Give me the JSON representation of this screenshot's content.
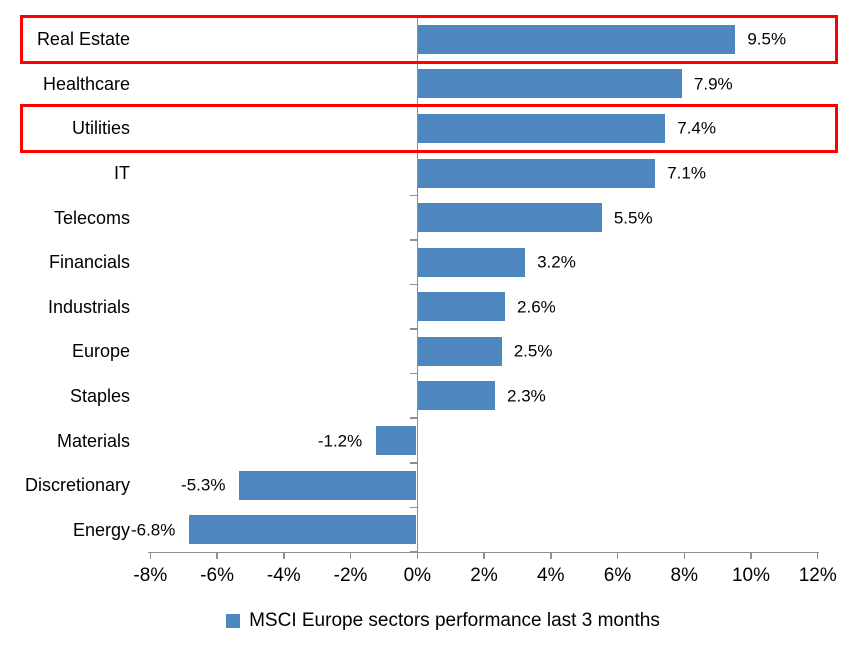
{
  "chart_data": {
    "type": "bar",
    "orientation": "horizontal",
    "title": "",
    "legend": "MSCI Europe sectors performance last 3 months",
    "legend_position": "bottom-center",
    "categories": [
      "Real Estate",
      "Healthcare",
      "Utilities",
      "IT",
      "Telecoms",
      "Financials",
      "Industrials",
      "Europe",
      "Staples",
      "Materials",
      "Discretionary",
      "Energy"
    ],
    "values": [
      9.5,
      7.9,
      7.4,
      7.1,
      5.5,
      3.2,
      2.6,
      2.5,
      2.3,
      -1.2,
      -5.3,
      -6.8
    ],
    "value_labels": [
      "9.5%",
      "7.9%",
      "7.4%",
      "7.1%",
      "5.5%",
      "3.2%",
      "2.6%",
      "2.5%",
      "2.3%",
      "-1.2%",
      "-5.3%",
      "-6.8%"
    ],
    "x_tick_labels": [
      "-8%",
      "-6%",
      "-4%",
      "-2%",
      "0%",
      "2%",
      "4%",
      "6%",
      "8%",
      "10%",
      "12%"
    ],
    "x_tick_values": [
      -8,
      -6,
      -4,
      -2,
      0,
      2,
      4,
      6,
      8,
      10,
      12
    ],
    "xlim": [
      -8.1,
      12
    ],
    "grid": false,
    "highlighted_categories": [
      "Real Estate",
      "Utilities"
    ],
    "colors": {
      "bar": "#4e86be",
      "axis": "#8e8e8e",
      "text": "#000000",
      "highlight_border": "#ff0000",
      "background": "#ffffff"
    }
  }
}
